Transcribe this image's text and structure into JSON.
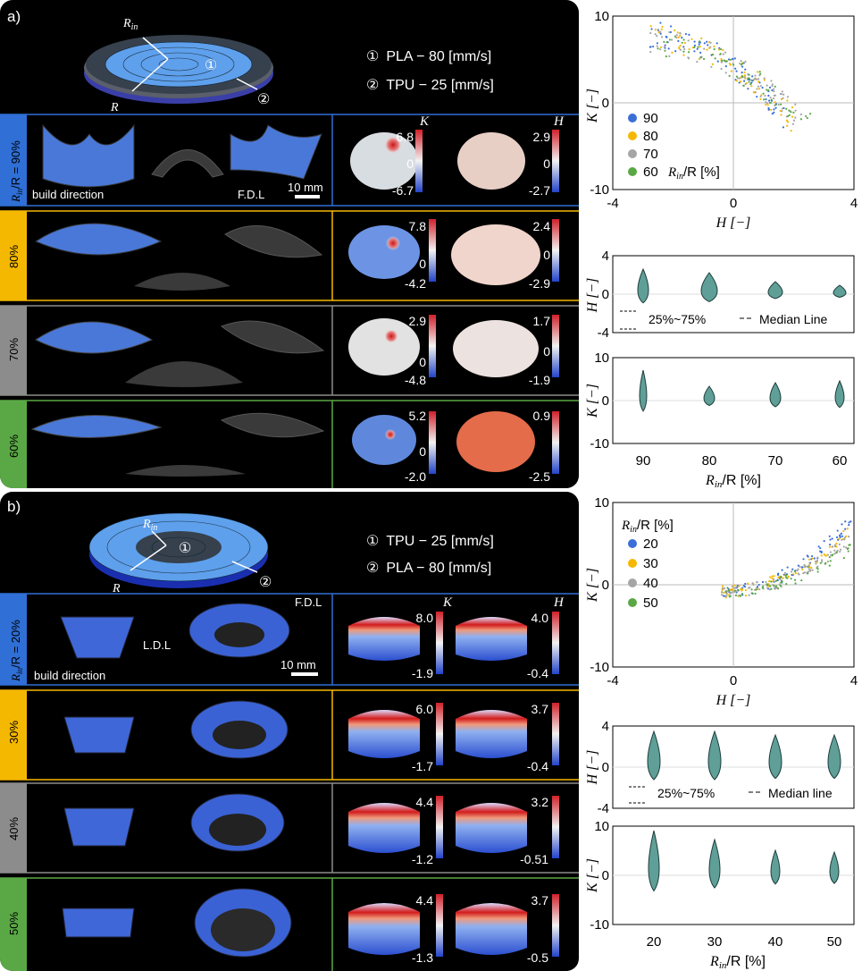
{
  "panel_a": {
    "label": "a)",
    "diagram": {
      "r_in": "R",
      "r_in_sub": "in",
      "r": "R",
      "m1": "①",
      "m2": "②"
    },
    "legend": [
      {
        "mark": "①",
        "text": "PLA − 80 [mm/s]"
      },
      {
        "mark": "②",
        "text": "TPU − 25 [mm/s]"
      }
    ],
    "rows": [
      {
        "tag": "R",
        "tag_sub": "in",
        "tag_rest": "/R = 90%",
        "color": "#2f6fd6",
        "k_max": "6.8",
        "k_zero": "0",
        "k_min": "-6.7",
        "h_max": "2.9",
        "h_zero": "0",
        "h_min": "-2.7"
      },
      {
        "tag": "80%",
        "color": "#f5b800",
        "k_max": "7.8",
        "k_zero": "0",
        "k_min": "-4.2",
        "h_max": "2.4",
        "h_zero": "0",
        "h_min": "-2.9"
      },
      {
        "tag": "70%",
        "color": "#8c8c8c",
        "k_max": "2.9",
        "k_zero": "0",
        "k_min": "-4.8",
        "h_max": "1.7",
        "h_zero": "0",
        "h_min": "-1.9"
      },
      {
        "tag": "60%",
        "color": "#5aa845",
        "k_max": "5.2",
        "k_zero": "0",
        "k_min": "-2.0",
        "h_max": "0.9",
        "h_zero": "",
        "h_min": "-2.5"
      }
    ],
    "annot": {
      "build": "build direction",
      "fdl": "F.D.L",
      "scale": "10 mm",
      "k": "K",
      "h": "H"
    }
  },
  "panel_b": {
    "label": "b)",
    "legend": [
      {
        "mark": "①",
        "text": "TPU − 25 [mm/s]"
      },
      {
        "mark": "②",
        "text": "PLA − 80 [mm/s]"
      }
    ],
    "rows": [
      {
        "tag": "R",
        "tag_sub": "in",
        "tag_rest": "/R = 20%",
        "color": "#2f6fd6",
        "k_max": "8.0",
        "k_min": "-1.9",
        "h_max": "4.0",
        "h_min": "-0.4"
      },
      {
        "tag": "30%",
        "color": "#f5b800",
        "k_max": "6.0",
        "k_min": "-1.7",
        "h_max": "3.7",
        "h_min": "-0.4"
      },
      {
        "tag": "40%",
        "color": "#8c8c8c",
        "k_max": "4.4",
        "k_min": "-1.2",
        "h_max": "3.2",
        "h_min": "-0.51"
      },
      {
        "tag": "50%",
        "color": "#5aa845",
        "k_max": "4.4",
        "k_min": "-1.3",
        "h_max": "3.7",
        "h_min": "-0.5"
      }
    ],
    "annot": {
      "build": "build direction",
      "fdl": "F.D.L",
      "ldl": "L.D.L",
      "scale": "10 mm",
      "k": "K",
      "h": "H"
    }
  },
  "chart_data": [
    {
      "type": "scatter",
      "xlabel": "H [−]",
      "ylabel": "K [−]",
      "xlim": [
        -4,
        4
      ],
      "ylim": [
        -10,
        10
      ],
      "x_ticks": [
        "-4",
        "0",
        "4"
      ],
      "y_ticks": [
        "10",
        "0",
        "-10"
      ],
      "legend_title": "",
      "legend_last_suffix": "R",
      "legend_suffix_sub": "in",
      "legend_suffix_rest": "/R [%]",
      "series": [
        {
          "name": "90",
          "color": "#3a6fd8"
        },
        {
          "name": "80",
          "color": "#f5b800"
        },
        {
          "name": "70",
          "color": "#a5a5a5"
        },
        {
          "name": "60",
          "color": "#5aa845"
        }
      ]
    },
    {
      "type": "violin",
      "ylabel": "H [−]",
      "ylim": [
        -4,
        4
      ],
      "y_ticks": [
        "4",
        "0",
        "-4"
      ],
      "categories": [
        "90",
        "80",
        "70",
        "60"
      ],
      "notes": {
        "iqr": "25%~75%",
        "median": "Median Line"
      }
    },
    {
      "type": "violin",
      "ylabel": "K [−]",
      "ylim": [
        -10,
        10
      ],
      "y_ticks": [
        "10",
        "0",
        "-10"
      ],
      "categories": [
        "90",
        "80",
        "70",
        "60"
      ],
      "xlabel": "R",
      "xlabel_sub": "in",
      "xlabel_rest": "/R [%]"
    },
    {
      "type": "scatter",
      "xlabel": "H [−]",
      "ylabel": "K [−]",
      "xlim": [
        -4,
        4
      ],
      "ylim": [
        -10,
        10
      ],
      "x_ticks": [
        "-4",
        "0",
        "4"
      ],
      "y_ticks": [
        "10",
        "0",
        "-10"
      ],
      "legend_title_r": "R",
      "legend_title_sub": "in",
      "legend_title_rest": "/R [%]",
      "series": [
        {
          "name": "20",
          "color": "#3a6fd8"
        },
        {
          "name": "30",
          "color": "#f5b800"
        },
        {
          "name": "40",
          "color": "#a5a5a5"
        },
        {
          "name": "50",
          "color": "#5aa845"
        }
      ]
    },
    {
      "type": "violin",
      "ylabel": "H [−]",
      "ylim": [
        -4,
        4
      ],
      "y_ticks": [
        "4",
        "0",
        "-4"
      ],
      "categories": [
        "20",
        "30",
        "40",
        "50"
      ],
      "notes": {
        "iqr": "25%~75%",
        "median": "Median line"
      }
    },
    {
      "type": "violin",
      "ylabel": "K [−]",
      "ylim": [
        -10,
        10
      ],
      "y_ticks": [
        "10",
        "0",
        "-10"
      ],
      "categories": [
        "20",
        "30",
        "40",
        "50"
      ],
      "xlabel": "R",
      "xlabel_sub": "in",
      "xlabel_rest": "/R [%]"
    }
  ]
}
